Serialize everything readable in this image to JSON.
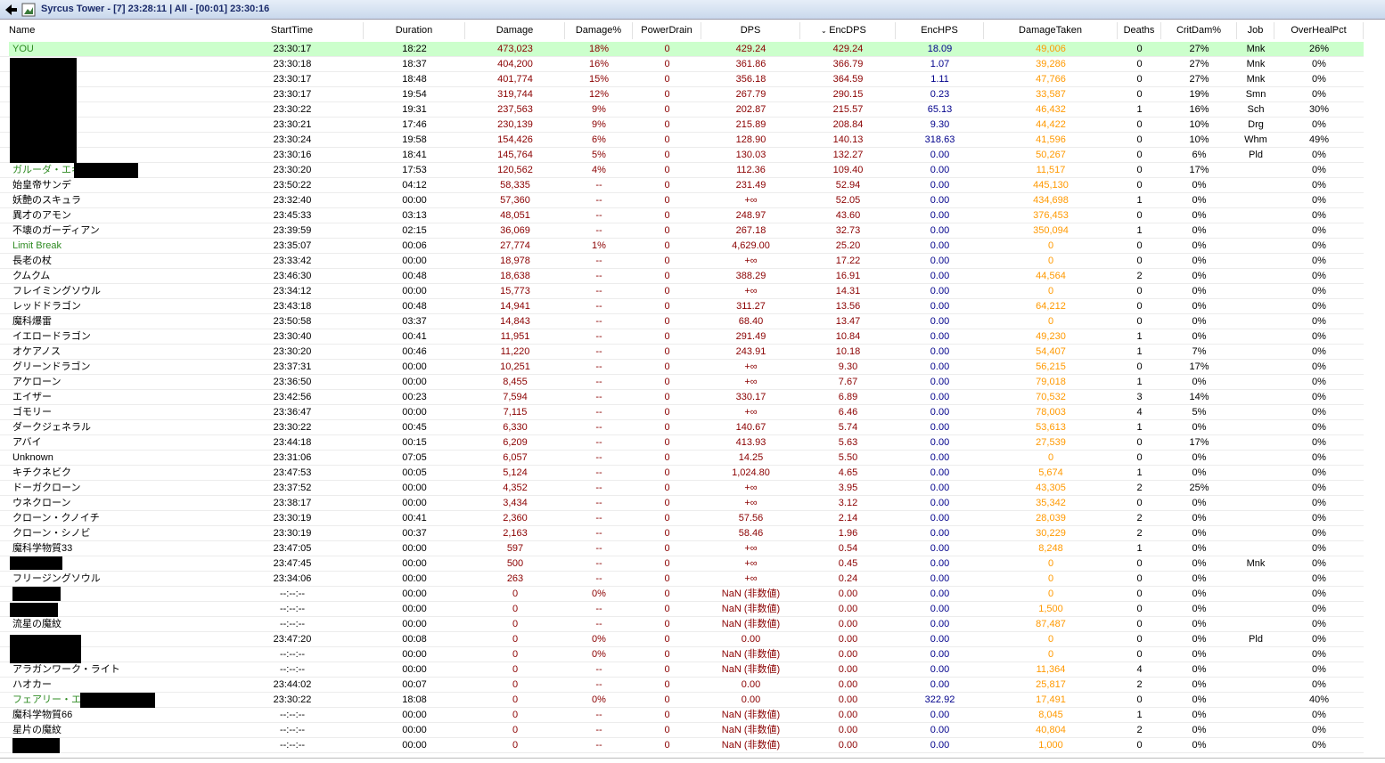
{
  "window": {
    "title": "Syrcus Tower - [7] 23:28:11 | All - [00:01] 23:30:16"
  },
  "table": {
    "columns": [
      "Name",
      "StartTime",
      "Duration",
      "Damage",
      "Damage%",
      "PowerDrain",
      "DPS",
      "EncDPS",
      "EncHPS",
      "DamageTaken",
      "Deaths",
      "CritDam%",
      "Job",
      "OverHealPct"
    ],
    "rows": [
      [
        "YOU",
        "23:30:17",
        "18:22",
        "473,023",
        "18%",
        "0",
        "429.24",
        "429.24",
        "18.09",
        "49,006",
        "0",
        "27%",
        "Mnk",
        "26%"
      ],
      [
        null,
        "23:30:18",
        "18:37",
        "404,200",
        "16%",
        "0",
        "361.86",
        "366.79",
        "1.07",
        "39,286",
        "0",
        "27%",
        "Mnk",
        "0%"
      ],
      [
        null,
        "23:30:17",
        "18:48",
        "401,774",
        "15%",
        "0",
        "356.18",
        "364.59",
        "1.11",
        "47,766",
        "0",
        "27%",
        "Mnk",
        "0%"
      ],
      [
        null,
        "23:30:17",
        "19:54",
        "319,744",
        "12%",
        "0",
        "267.79",
        "290.15",
        "0.23",
        "33,587",
        "0",
        "19%",
        "Smn",
        "0%"
      ],
      [
        null,
        "23:30:22",
        "19:31",
        "237,563",
        "9%",
        "0",
        "202.87",
        "215.57",
        "65.13",
        "46,432",
        "1",
        "16%",
        "Sch",
        "30%"
      ],
      [
        null,
        "23:30:21",
        "17:46",
        "230,139",
        "9%",
        "0",
        "215.89",
        "208.84",
        "9.30",
        "44,422",
        "0",
        "10%",
        "Drg",
        "0%"
      ],
      [
        null,
        "23:30:24",
        "19:58",
        "154,426",
        "6%",
        "0",
        "128.90",
        "140.13",
        "318.63",
        "41,596",
        "0",
        "10%",
        "Whm",
        "49%"
      ],
      [
        null,
        "23:30:16",
        "18:41",
        "145,764",
        "5%",
        "0",
        "130.03",
        "132.27",
        "0.00",
        "50,267",
        "0",
        "6%",
        "Pld",
        "0%"
      ],
      [
        "ガルーダ・エギ",
        "23:30:20",
        "17:53",
        "120,562",
        "4%",
        "0",
        "112.36",
        "109.40",
        "0.00",
        "11,517",
        "0",
        "17%",
        null,
        "0%"
      ],
      [
        "始皇帝サンデ",
        "23:50:22",
        "04:12",
        "58,335",
        "--",
        "0",
        "231.49",
        "52.94",
        "0.00",
        "445,130",
        "0",
        "0%",
        null,
        "0%"
      ],
      [
        "妖艶のスキュラ",
        "23:32:40",
        "00:00",
        "57,360",
        "--",
        "0",
        "+∞",
        "52.05",
        "0.00",
        "434,698",
        "1",
        "0%",
        null,
        "0%"
      ],
      [
        "異才のアモン",
        "23:45:33",
        "03:13",
        "48,051",
        "--",
        "0",
        "248.97",
        "43.60",
        "0.00",
        "376,453",
        "0",
        "0%",
        null,
        "0%"
      ],
      [
        "不壊のガーディアン",
        "23:39:59",
        "02:15",
        "36,069",
        "--",
        "0",
        "267.18",
        "32.73",
        "0.00",
        "350,094",
        "1",
        "0%",
        null,
        "0%"
      ],
      [
        "Limit Break",
        "23:35:07",
        "00:06",
        "27,774",
        "1%",
        "0",
        "4,629.00",
        "25.20",
        "0.00",
        "0",
        "0",
        "0%",
        null,
        "0%"
      ],
      [
        "長老の杖",
        "23:33:42",
        "00:00",
        "18,978",
        "--",
        "0",
        "+∞",
        "17.22",
        "0.00",
        "0",
        "0",
        "0%",
        null,
        "0%"
      ],
      [
        "クムクム",
        "23:46:30",
        "00:48",
        "18,638",
        "--",
        "0",
        "388.29",
        "16.91",
        "0.00",
        "44,564",
        "2",
        "0%",
        null,
        "0%"
      ],
      [
        "フレイミングソウル",
        "23:34:12",
        "00:00",
        "15,773",
        "--",
        "0",
        "+∞",
        "14.31",
        "0.00",
        "0",
        "0",
        "0%",
        null,
        "0%"
      ],
      [
        "レッドドラゴン",
        "23:43:18",
        "00:48",
        "14,941",
        "--",
        "0",
        "311.27",
        "13.56",
        "0.00",
        "64,212",
        "0",
        "0%",
        null,
        "0%"
      ],
      [
        "魔科爆雷",
        "23:50:58",
        "03:37",
        "14,843",
        "--",
        "0",
        "68.40",
        "13.47",
        "0.00",
        "0",
        "0",
        "0%",
        null,
        "0%"
      ],
      [
        "イエロードラゴン",
        "23:30:40",
        "00:41",
        "11,951",
        "--",
        "0",
        "291.49",
        "10.84",
        "0.00",
        "49,230",
        "1",
        "0%",
        null,
        "0%"
      ],
      [
        "オケアノス",
        "23:30:20",
        "00:46",
        "11,220",
        "--",
        "0",
        "243.91",
        "10.18",
        "0.00",
        "54,407",
        "1",
        "7%",
        null,
        "0%"
      ],
      [
        "グリーンドラゴン",
        "23:37:31",
        "00:00",
        "10,251",
        "--",
        "0",
        "+∞",
        "9.30",
        "0.00",
        "56,215",
        "0",
        "17%",
        null,
        "0%"
      ],
      [
        "アケローン",
        "23:36:50",
        "00:00",
        "8,455",
        "--",
        "0",
        "+∞",
        "7.67",
        "0.00",
        "79,018",
        "1",
        "0%",
        null,
        "0%"
      ],
      [
        "エイザー",
        "23:42:56",
        "00:23",
        "7,594",
        "--",
        "0",
        "330.17",
        "6.89",
        "0.00",
        "70,532",
        "3",
        "14%",
        null,
        "0%"
      ],
      [
        "ゴモリー",
        "23:36:47",
        "00:00",
        "7,115",
        "--",
        "0",
        "+∞",
        "6.46",
        "0.00",
        "78,003",
        "4",
        "5%",
        null,
        "0%"
      ],
      [
        "ダークジェネラル",
        "23:30:22",
        "00:45",
        "6,330",
        "--",
        "0",
        "140.67",
        "5.74",
        "0.00",
        "53,613",
        "1",
        "0%",
        null,
        "0%"
      ],
      [
        "アバイ",
        "23:44:18",
        "00:15",
        "6,209",
        "--",
        "0",
        "413.93",
        "5.63",
        "0.00",
        "27,539",
        "0",
        "17%",
        null,
        "0%"
      ],
      [
        "Unknown",
        "23:31:06",
        "07:05",
        "6,057",
        "--",
        "0",
        "14.25",
        "5.50",
        "0.00",
        "0",
        "0",
        "0%",
        null,
        "0%"
      ],
      [
        "キチクネビク",
        "23:47:53",
        "00:05",
        "5,124",
        "--",
        "0",
        "1,024.80",
        "4.65",
        "0.00",
        "5,674",
        "1",
        "0%",
        null,
        "0%"
      ],
      [
        "ドーガクローン",
        "23:37:52",
        "00:00",
        "4,352",
        "--",
        "0",
        "+∞",
        "3.95",
        "0.00",
        "43,305",
        "2",
        "25%",
        null,
        "0%"
      ],
      [
        "ウネクローン",
        "23:38:17",
        "00:00",
        "3,434",
        "--",
        "0",
        "+∞",
        "3.12",
        "0.00",
        "35,342",
        "0",
        "0%",
        null,
        "0%"
      ],
      [
        "クローン・クノイチ",
        "23:30:19",
        "00:41",
        "2,360",
        "--",
        "0",
        "57.56",
        "2.14",
        "0.00",
        "28,039",
        "2",
        "0%",
        null,
        "0%"
      ],
      [
        "クローン・シノビ",
        "23:30:19",
        "00:37",
        "2,163",
        "--",
        "0",
        "58.46",
        "1.96",
        "0.00",
        "30,229",
        "2",
        "0%",
        null,
        "0%"
      ],
      [
        "魔科学物質33",
        "23:47:05",
        "00:00",
        "597",
        "--",
        "0",
        "+∞",
        "0.54",
        "0.00",
        "8,248",
        "1",
        "0%",
        null,
        "0%"
      ],
      [
        null,
        "23:47:45",
        "00:00",
        "500",
        "--",
        "0",
        "+∞",
        "0.45",
        "0.00",
        "0",
        "0",
        "0%",
        "Mnk",
        "0%"
      ],
      [
        "フリージングソウル",
        "23:34:06",
        "00:00",
        "263",
        "--",
        "0",
        "+∞",
        "0.24",
        "0.00",
        "0",
        "0",
        "0%",
        null,
        "0%"
      ],
      [
        null,
        "--:--:--",
        "00:00",
        "0",
        "0%",
        "0",
        "NaN (非数値)",
        "0.00",
        "0.00",
        "0",
        "0",
        "0%",
        null,
        "0%"
      ],
      [
        null,
        "--:--:--",
        "00:00",
        "0",
        "--",
        "0",
        "NaN (非数値)",
        "0.00",
        "0.00",
        "1,500",
        "0",
        "0%",
        null,
        "0%"
      ],
      [
        "流星の魔紋",
        "--:--:--",
        "00:00",
        "0",
        "--",
        "0",
        "NaN (非数値)",
        "0.00",
        "0.00",
        "87,487",
        "0",
        "0%",
        null,
        "0%"
      ],
      [
        null,
        "23:47:20",
        "00:08",
        "0",
        "0%",
        "0",
        "0.00",
        "0.00",
        "0.00",
        "0",
        "0",
        "0%",
        "Pld",
        "0%"
      ],
      [
        null,
        "--:--:--",
        "00:00",
        "0",
        "0%",
        "0",
        "NaN (非数値)",
        "0.00",
        "0.00",
        "0",
        "0",
        "0%",
        null,
        "0%"
      ],
      [
        "アラガンワーク・ライト",
        "--:--:--",
        "00:00",
        "0",
        "--",
        "0",
        "NaN (非数値)",
        "0.00",
        "0.00",
        "11,364",
        "4",
        "0%",
        null,
        "0%"
      ],
      [
        "ハオカー",
        "23:44:02",
        "00:07",
        "0",
        "--",
        "0",
        "0.00",
        "0.00",
        "0.00",
        "25,817",
        "2",
        "0%",
        null,
        "0%"
      ],
      [
        "フェアリー・エオス",
        "23:30:22",
        "18:08",
        "0",
        "0%",
        "0",
        "0.00",
        "0.00",
        "322.92",
        "17,491",
        "0",
        "0%",
        null,
        "40%"
      ],
      [
        "魔科学物質66",
        "--:--:--",
        "00:00",
        "0",
        "--",
        "0",
        "NaN (非数値)",
        "0.00",
        "0.00",
        "8,045",
        "1",
        "0%",
        null,
        "0%"
      ],
      [
        "星片の魔紋",
        "--:--:--",
        "00:00",
        "0",
        "--",
        "0",
        "NaN (非数値)",
        "0.00",
        "0.00",
        "40,804",
        "2",
        "0%",
        null,
        "0%"
      ],
      [
        null,
        "--:--:--",
        "00:00",
        "0",
        "--",
        "0",
        "NaN (非数値)",
        "0.00",
        "0.00",
        "1,000",
        "0",
        "0%",
        null,
        "0%"
      ]
    ]
  }
}
